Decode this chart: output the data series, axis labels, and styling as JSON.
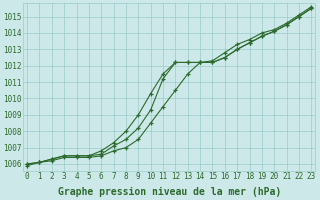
{
  "title": "Graphe pression niveau de la mer (hPa)",
  "xlabel_hours": [
    0,
    1,
    2,
    3,
    4,
    5,
    6,
    7,
    8,
    9,
    10,
    11,
    12,
    13,
    14,
    15,
    16,
    17,
    18,
    19,
    20,
    21,
    22,
    23
  ],
  "line1": [
    1006.0,
    1006.1,
    1006.3,
    1006.5,
    1006.5,
    1006.5,
    1006.6,
    1007.1,
    1007.5,
    1008.2,
    1009.3,
    1011.2,
    1012.2,
    1012.2,
    1012.2,
    1012.2,
    1012.5,
    1013.0,
    1013.4,
    1013.8,
    1014.1,
    1014.5,
    1015.0,
    1015.5
  ],
  "line2": [
    1006.0,
    1006.1,
    1006.3,
    1006.5,
    1006.5,
    1006.5,
    1006.8,
    1007.3,
    1008.0,
    1009.0,
    1010.3,
    1011.5,
    1012.2,
    1012.2,
    1012.2,
    1012.3,
    1012.8,
    1013.3,
    1013.6,
    1014.0,
    1014.2,
    1014.6,
    1015.1,
    1015.6
  ],
  "line3": [
    1005.9,
    1006.1,
    1006.2,
    1006.4,
    1006.4,
    1006.4,
    1006.5,
    1006.8,
    1007.0,
    1007.5,
    1008.5,
    1009.5,
    1010.5,
    1011.5,
    1012.2,
    1012.2,
    1012.5,
    1013.0,
    1013.4,
    1013.8,
    1014.1,
    1014.5,
    1015.0,
    1015.5
  ],
  "bg_color": "#cce8e8",
  "grid_color": "#99cccc",
  "line_color": "#2d6a2d",
  "marker": "+",
  "yticks": [
    1006,
    1007,
    1008,
    1009,
    1010,
    1011,
    1012,
    1013,
    1014,
    1015
  ],
  "xticks": [
    0,
    1,
    2,
    3,
    4,
    5,
    6,
    7,
    8,
    9,
    10,
    11,
    12,
    13,
    14,
    15,
    16,
    17,
    18,
    19,
    20,
    21,
    22,
    23
  ],
  "title_fontsize": 7,
  "tick_fontsize": 5.5,
  "title_color": "#2d6a2d",
  "title_fontweight": "bold"
}
